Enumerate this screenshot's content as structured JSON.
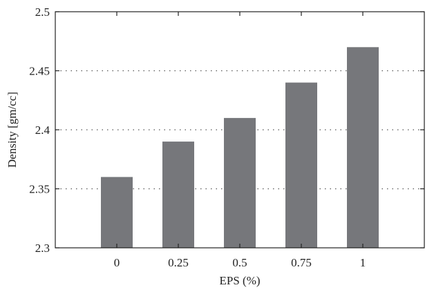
{
  "chart_data": {
    "type": "bar",
    "title": "",
    "xlabel": "EPS (%)",
    "ylabel": "Density [gm/cc]",
    "categories": [
      "0",
      "0.25",
      "0.5",
      "0.75",
      "1"
    ],
    "values": [
      2.36,
      2.39,
      2.41,
      2.44,
      2.47
    ],
    "ylim": [
      2.3,
      2.5
    ],
    "yticks": [
      "2.3",
      "2.35",
      "2.4",
      "2.45",
      "2.5"
    ],
    "grid": "horizontal dotted",
    "bar_color": "#76777b"
  }
}
